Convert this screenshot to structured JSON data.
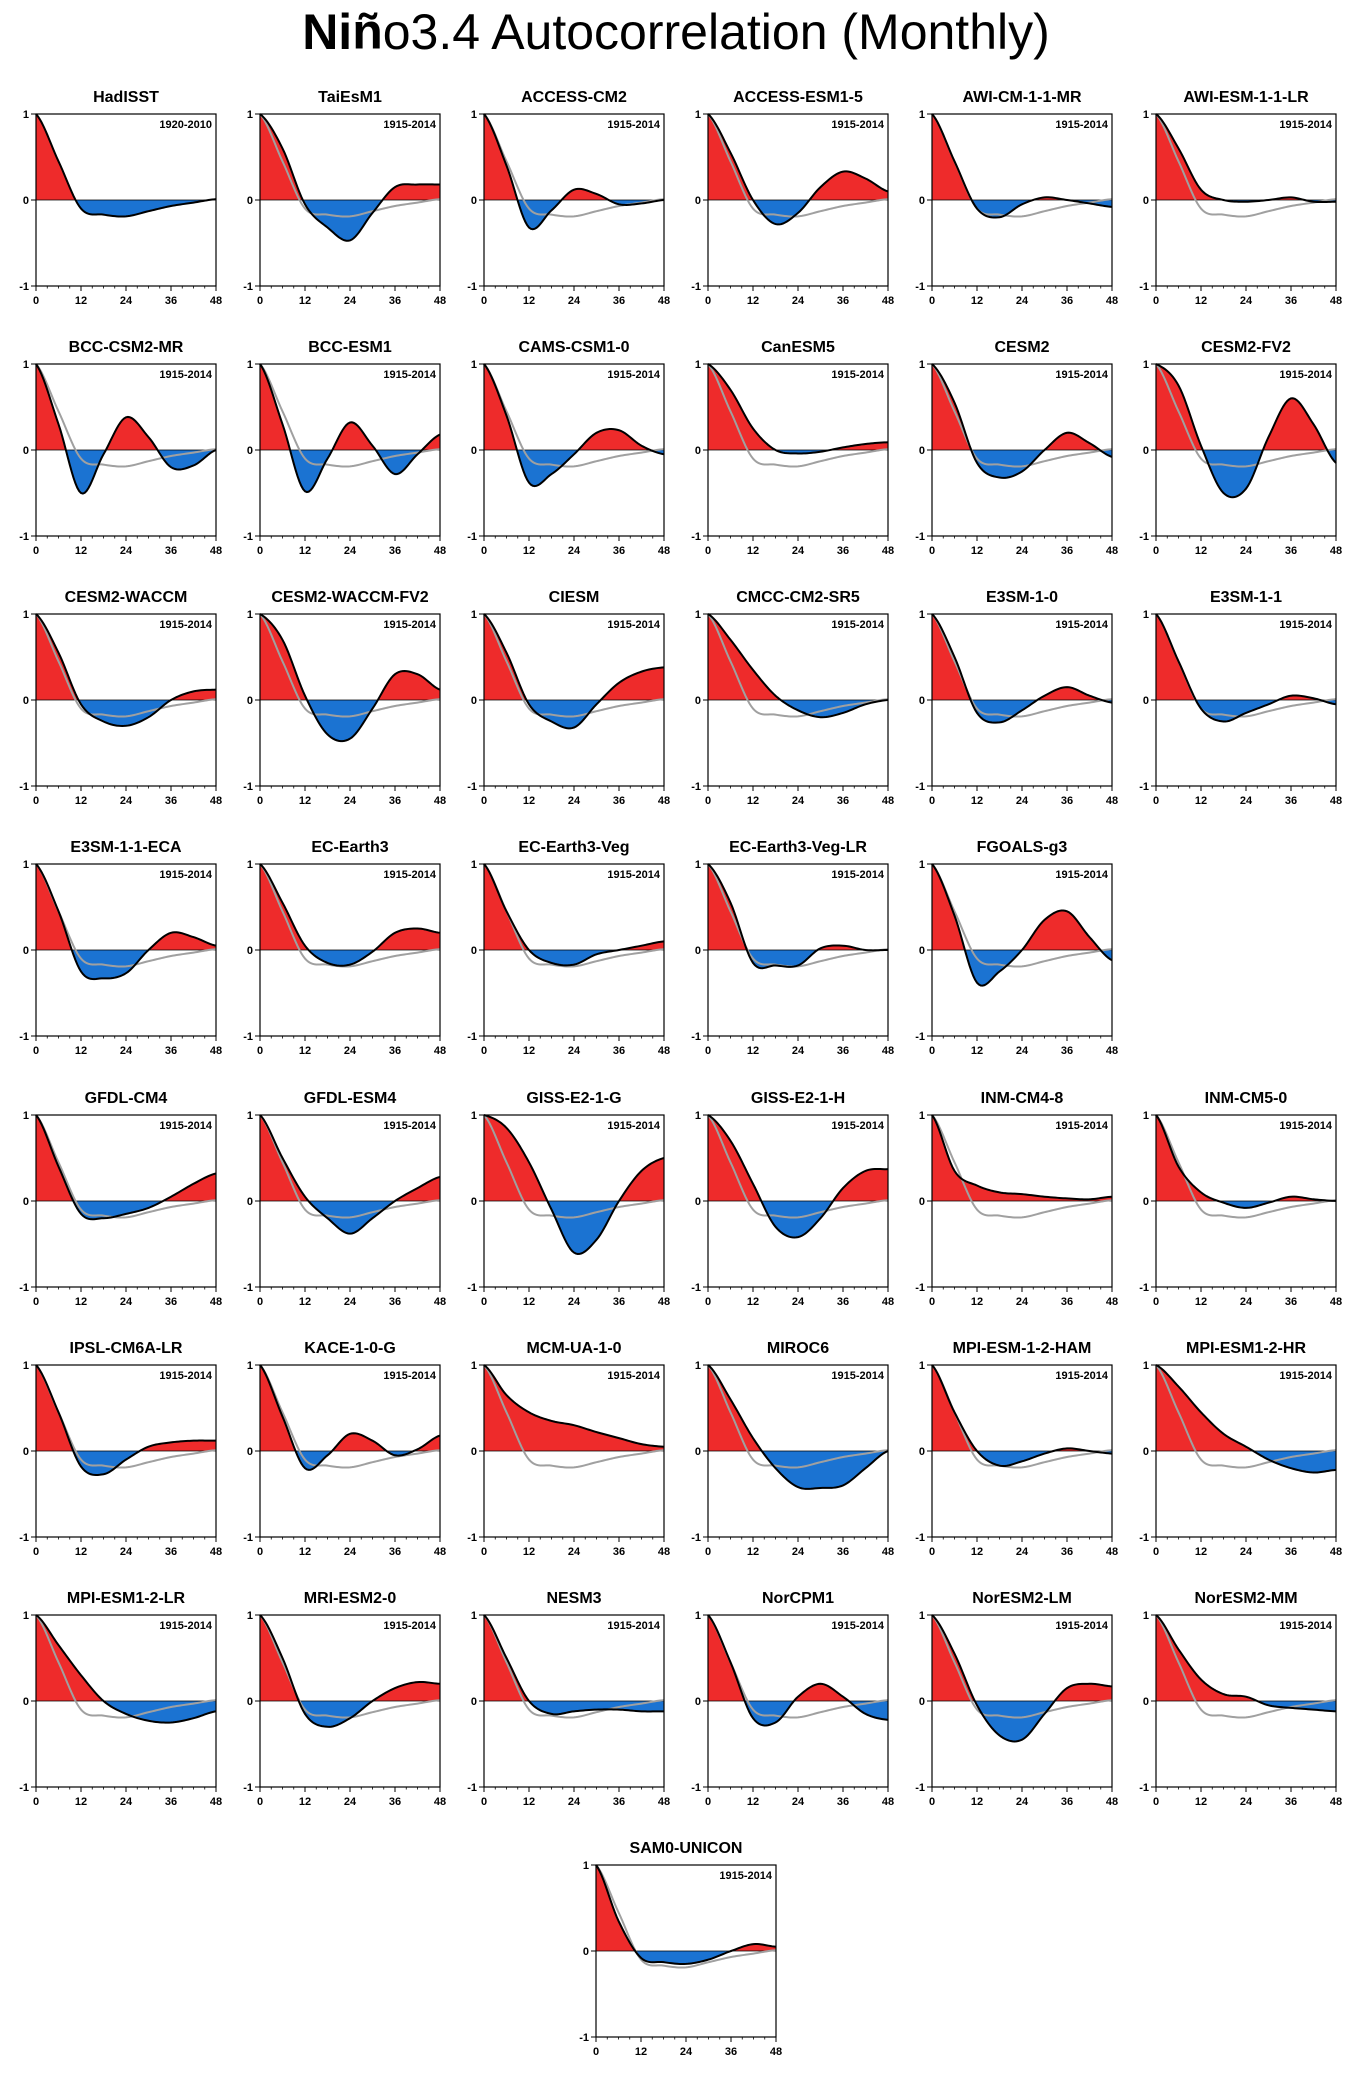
{
  "title": {
    "bold": "Niñ",
    "rest": "o3.4 Autocorrelation (Monthly)"
  },
  "colors": {
    "positive": "#ee2b2b",
    "negative": "#1b73d2",
    "reference": "#a0a0a0",
    "line": "#000000"
  },
  "chart_data": {
    "type": "area",
    "xlim": [
      0,
      48
    ],
    "ylim": [
      -1,
      1
    ],
    "x_ticks": [
      "0",
      "12",
      "24",
      "36",
      "48"
    ],
    "y_ticks": [
      "1",
      "0",
      "-1"
    ],
    "reference_series": "HadISST",
    "panels": [
      {
        "name": "HadISST",
        "period": "1920-2010",
        "lags": [
          0,
          6,
          12,
          18,
          24,
          30,
          36,
          42,
          48
        ],
        "values": [
          1.0,
          0.45,
          -0.1,
          -0.17,
          -0.19,
          -0.13,
          -0.07,
          -0.03,
          0.01
        ]
      },
      {
        "name": "TaiEsM1",
        "period": "1915-2014",
        "lags": [
          0,
          6,
          12,
          18,
          24,
          30,
          36,
          42,
          48
        ],
        "values": [
          1.0,
          0.6,
          -0.05,
          -0.32,
          -0.47,
          -0.15,
          0.15,
          0.18,
          0.18
        ]
      },
      {
        "name": "ACCESS-CM2",
        "period": "1915-2014",
        "lags": [
          0,
          6,
          12,
          18,
          24,
          30,
          36,
          42,
          48
        ],
        "values": [
          1.0,
          0.4,
          -0.32,
          -0.12,
          0.12,
          0.07,
          -0.05,
          -0.04,
          0.0
        ]
      },
      {
        "name": "ACCESS-ESM1-5",
        "period": "1915-2014",
        "lags": [
          0,
          6,
          12,
          18,
          24,
          30,
          36,
          42,
          48
        ],
        "values": [
          1.0,
          0.55,
          0.0,
          -0.28,
          -0.15,
          0.15,
          0.33,
          0.25,
          0.1
        ]
      },
      {
        "name": "AWI-CM-1-1-MR",
        "period": "1915-2014",
        "lags": [
          0,
          6,
          12,
          18,
          24,
          30,
          36,
          42,
          48
        ],
        "values": [
          1.0,
          0.45,
          -0.1,
          -0.2,
          -0.05,
          0.03,
          0.0,
          -0.04,
          -0.08
        ]
      },
      {
        "name": "AWI-ESM-1-1-LR",
        "period": "1915-2014",
        "lags": [
          0,
          6,
          12,
          18,
          24,
          30,
          36,
          42,
          48
        ],
        "values": [
          1.0,
          0.6,
          0.12,
          0.0,
          -0.02,
          0.0,
          0.03,
          -0.02,
          -0.02
        ]
      },
      {
        "name": "BCC-CSM2-MR",
        "period": "1915-2014",
        "lags": [
          0,
          6,
          12,
          18,
          24,
          30,
          36,
          42,
          48
        ],
        "values": [
          1.0,
          0.3,
          -0.5,
          -0.05,
          0.38,
          0.15,
          -0.2,
          -0.18,
          0.0
        ]
      },
      {
        "name": "BCC-ESM1",
        "period": "1915-2014",
        "lags": [
          0,
          6,
          12,
          18,
          24,
          30,
          36,
          42,
          48
        ],
        "values": [
          1.0,
          0.3,
          -0.48,
          -0.1,
          0.32,
          0.05,
          -0.28,
          -0.05,
          0.18
        ]
      },
      {
        "name": "CAMS-CSM1-0",
        "period": "1915-2014",
        "lags": [
          0,
          6,
          12,
          18,
          24,
          30,
          36,
          42,
          48
        ],
        "values": [
          1.0,
          0.4,
          -0.38,
          -0.28,
          -0.05,
          0.2,
          0.23,
          0.05,
          -0.05
        ]
      },
      {
        "name": "CanESM5",
        "period": "1915-2014",
        "lags": [
          0,
          6,
          12,
          18,
          24,
          30,
          36,
          42,
          48
        ],
        "values": [
          1.0,
          0.7,
          0.25,
          0.0,
          -0.04,
          -0.02,
          0.03,
          0.07,
          0.09
        ]
      },
      {
        "name": "CESM2",
        "period": "1915-2014",
        "lags": [
          0,
          6,
          12,
          18,
          24,
          30,
          36,
          42,
          48
        ],
        "values": [
          1.0,
          0.55,
          -0.15,
          -0.32,
          -0.25,
          0.0,
          0.2,
          0.08,
          -0.08
        ]
      },
      {
        "name": "CESM2-FV2",
        "period": "1915-2014",
        "lags": [
          0,
          6,
          12,
          18,
          24,
          30,
          36,
          42,
          48
        ],
        "values": [
          1.0,
          0.75,
          0.05,
          -0.5,
          -0.45,
          0.15,
          0.6,
          0.3,
          -0.15
        ]
      },
      {
        "name": "CESM2-WACCM",
        "period": "1915-2014",
        "lags": [
          0,
          6,
          12,
          18,
          24,
          30,
          36,
          42,
          48
        ],
        "values": [
          1.0,
          0.55,
          -0.05,
          -0.25,
          -0.3,
          -0.2,
          0.0,
          0.1,
          0.12
        ]
      },
      {
        "name": "CESM2-WACCM-FV2",
        "period": "1915-2014",
        "lags": [
          0,
          6,
          12,
          18,
          24,
          30,
          36,
          42,
          48
        ],
        "values": [
          1.0,
          0.7,
          0.05,
          -0.4,
          -0.45,
          -0.1,
          0.3,
          0.3,
          0.12
        ]
      },
      {
        "name": "CIESM",
        "period": "1915-2014",
        "lags": [
          0,
          6,
          12,
          18,
          24,
          30,
          36,
          42,
          48
        ],
        "values": [
          1.0,
          0.55,
          -0.05,
          -0.25,
          -0.32,
          -0.05,
          0.2,
          0.33,
          0.38
        ]
      },
      {
        "name": "CMCC-CM2-SR5",
        "period": "1915-2014",
        "lags": [
          0,
          6,
          12,
          18,
          24,
          30,
          36,
          42,
          48
        ],
        "values": [
          1.0,
          0.7,
          0.35,
          0.05,
          -0.12,
          -0.2,
          -0.15,
          -0.05,
          0.0
        ]
      },
      {
        "name": "E3SM-1-0",
        "period": "1915-2014",
        "lags": [
          0,
          6,
          12,
          18,
          24,
          30,
          36,
          42,
          48
        ],
        "values": [
          1.0,
          0.5,
          -0.15,
          -0.26,
          -0.12,
          0.05,
          0.15,
          0.05,
          -0.03
        ]
      },
      {
        "name": "E3SM-1-1",
        "period": "1915-2014",
        "lags": [
          0,
          6,
          12,
          18,
          24,
          30,
          36,
          42,
          48
        ],
        "values": [
          1.0,
          0.45,
          -0.1,
          -0.25,
          -0.15,
          -0.05,
          0.05,
          0.02,
          -0.05
        ]
      },
      {
        "name": "E3SM-1-1-ECA",
        "period": "1915-2014",
        "lags": [
          0,
          6,
          12,
          18,
          24,
          30,
          36,
          42,
          48
        ],
        "values": [
          1.0,
          0.45,
          -0.25,
          -0.33,
          -0.27,
          0.0,
          0.2,
          0.15,
          0.05
        ]
      },
      {
        "name": "EC-Earth3",
        "period": "1915-2014",
        "lags": [
          0,
          6,
          12,
          18,
          24,
          30,
          36,
          42,
          48
        ],
        "values": [
          1.0,
          0.55,
          0.05,
          -0.15,
          -0.17,
          -0.02,
          0.2,
          0.25,
          0.2
        ]
      },
      {
        "name": "EC-Earth3-Veg",
        "period": "1915-2014",
        "lags": [
          0,
          6,
          12,
          18,
          24,
          30,
          36,
          42,
          48
        ],
        "values": [
          1.0,
          0.45,
          0.0,
          -0.15,
          -0.17,
          -0.05,
          0.0,
          0.05,
          0.1
        ]
      },
      {
        "name": "EC-Earth3-Veg-LR",
        "period": "1915-2014",
        "lags": [
          0,
          6,
          12,
          18,
          24,
          30,
          36,
          42,
          48
        ],
        "values": [
          1.0,
          0.55,
          -0.15,
          -0.18,
          -0.18,
          0.02,
          0.05,
          0.0,
          0.0
        ]
      },
      {
        "name": "FGOALS-g3",
        "period": "1915-2014",
        "lags": [
          0,
          6,
          12,
          18,
          24,
          30,
          36,
          42,
          48
        ],
        "values": [
          1.0,
          0.4,
          -0.38,
          -0.25,
          0.0,
          0.35,
          0.45,
          0.15,
          -0.12
        ]
      },
      {
        "name": "GFDL-CM4",
        "period": "1915-2014",
        "lags": [
          0,
          6,
          12,
          18,
          24,
          30,
          36,
          42,
          48
        ],
        "values": [
          1.0,
          0.4,
          -0.15,
          -0.2,
          -0.15,
          -0.08,
          0.05,
          0.2,
          0.32
        ]
      },
      {
        "name": "GFDL-ESM4",
        "period": "1915-2014",
        "lags": [
          0,
          6,
          12,
          18,
          24,
          30,
          36,
          42,
          48
        ],
        "values": [
          1.0,
          0.5,
          0.05,
          -0.2,
          -0.38,
          -0.2,
          0.0,
          0.15,
          0.28
        ]
      },
      {
        "name": "GISS-E2-1-G",
        "period": "1915-2014",
        "lags": [
          0,
          6,
          12,
          18,
          24,
          30,
          36,
          42,
          48
        ],
        "values": [
          1.0,
          0.85,
          0.45,
          -0.1,
          -0.6,
          -0.45,
          0.0,
          0.35,
          0.5
        ]
      },
      {
        "name": "GISS-E2-1-H",
        "period": "1915-2014",
        "lags": [
          0,
          6,
          12,
          18,
          24,
          30,
          36,
          42,
          48
        ],
        "values": [
          1.0,
          0.7,
          0.2,
          -0.3,
          -0.42,
          -0.2,
          0.15,
          0.35,
          0.37
        ]
      },
      {
        "name": "INM-CM4-8",
        "period": "1915-2014",
        "lags": [
          0,
          6,
          12,
          18,
          24,
          30,
          36,
          42,
          48
        ],
        "values": [
          1.0,
          0.35,
          0.18,
          0.1,
          0.08,
          0.05,
          0.03,
          0.02,
          0.05
        ]
      },
      {
        "name": "INM-CM5-0",
        "period": "1915-2014",
        "lags": [
          0,
          6,
          12,
          18,
          24,
          30,
          36,
          42,
          48
        ],
        "values": [
          1.0,
          0.4,
          0.1,
          -0.02,
          -0.08,
          -0.02,
          0.05,
          0.02,
          0.0
        ]
      },
      {
        "name": "IPSL-CM6A-LR",
        "period": "1915-2014",
        "lags": [
          0,
          6,
          12,
          18,
          24,
          30,
          36,
          42,
          48
        ],
        "values": [
          1.0,
          0.45,
          -0.18,
          -0.27,
          -0.1,
          0.05,
          0.1,
          0.12,
          0.12
        ]
      },
      {
        "name": "KACE-1-0-G",
        "period": "1915-2014",
        "lags": [
          0,
          6,
          12,
          18,
          24,
          30,
          36,
          42,
          48
        ],
        "values": [
          1.0,
          0.4,
          -0.2,
          -0.05,
          0.2,
          0.12,
          -0.05,
          0.02,
          0.18
        ]
      },
      {
        "name": "MCM-UA-1-0",
        "period": "1915-2014",
        "lags": [
          0,
          6,
          12,
          18,
          24,
          30,
          36,
          42,
          48
        ],
        "values": [
          1.0,
          0.65,
          0.45,
          0.35,
          0.3,
          0.22,
          0.15,
          0.08,
          0.05
        ]
      },
      {
        "name": "MIROC6",
        "period": "1915-2014",
        "lags": [
          0,
          6,
          12,
          18,
          24,
          30,
          36,
          42,
          48
        ],
        "values": [
          1.0,
          0.6,
          0.15,
          -0.2,
          -0.42,
          -0.43,
          -0.4,
          -0.2,
          0.0
        ]
      },
      {
        "name": "MPI-ESM-1-2-HAM",
        "period": "1915-2014",
        "lags": [
          0,
          6,
          12,
          18,
          24,
          30,
          36,
          42,
          48
        ],
        "values": [
          1.0,
          0.45,
          0.0,
          -0.17,
          -0.12,
          -0.03,
          0.03,
          0.0,
          -0.03
        ]
      },
      {
        "name": "MPI-ESM1-2-HR",
        "period": "1915-2014",
        "lags": [
          0,
          6,
          12,
          18,
          24,
          30,
          36,
          42,
          48
        ],
        "values": [
          1.0,
          0.75,
          0.45,
          0.2,
          0.05,
          -0.1,
          -0.2,
          -0.25,
          -0.22
        ]
      },
      {
        "name": "MPI-ESM1-2-LR",
        "period": "1915-2014",
        "lags": [
          0,
          6,
          12,
          18,
          24,
          30,
          36,
          42,
          48
        ],
        "values": [
          1.0,
          0.65,
          0.3,
          0.0,
          -0.15,
          -0.23,
          -0.25,
          -0.2,
          -0.12
        ]
      },
      {
        "name": "MRI-ESM2-0",
        "period": "1915-2014",
        "lags": [
          0,
          6,
          12,
          18,
          24,
          30,
          36,
          42,
          48
        ],
        "values": [
          1.0,
          0.5,
          -0.15,
          -0.3,
          -0.2,
          0.0,
          0.15,
          0.22,
          0.2
        ]
      },
      {
        "name": "NESM3",
        "period": "1915-2014",
        "lags": [
          0,
          6,
          12,
          18,
          24,
          30,
          36,
          42,
          48
        ],
        "values": [
          1.0,
          0.5,
          0.0,
          -0.15,
          -0.12,
          -0.1,
          -0.1,
          -0.12,
          -0.12
        ]
      },
      {
        "name": "NorCPM1",
        "period": "1915-2014",
        "lags": [
          0,
          6,
          12,
          18,
          24,
          30,
          36,
          42,
          48
        ],
        "values": [
          1.0,
          0.45,
          -0.2,
          -0.25,
          0.05,
          0.2,
          0.05,
          -0.15,
          -0.22
        ]
      },
      {
        "name": "NorESM2-LM",
        "period": "1915-2014",
        "lags": [
          0,
          6,
          12,
          18,
          24,
          30,
          36,
          42,
          48
        ],
        "values": [
          1.0,
          0.55,
          -0.05,
          -0.4,
          -0.45,
          -0.15,
          0.15,
          0.2,
          0.17
        ]
      },
      {
        "name": "NorESM2-MM",
        "period": "1915-2014",
        "lags": [
          0,
          6,
          12,
          18,
          24,
          30,
          36,
          42,
          48
        ],
        "values": [
          1.0,
          0.6,
          0.25,
          0.08,
          0.05,
          -0.05,
          -0.08,
          -0.1,
          -0.12
        ]
      },
      {
        "name": "SAM0-UNICON",
        "period": "1915-2014",
        "lags": [
          0,
          6,
          12,
          18,
          24,
          30,
          36,
          42,
          48
        ],
        "values": [
          1.0,
          0.35,
          -0.08,
          -0.13,
          -0.15,
          -0.1,
          0.0,
          0.08,
          0.05
        ]
      }
    ]
  }
}
